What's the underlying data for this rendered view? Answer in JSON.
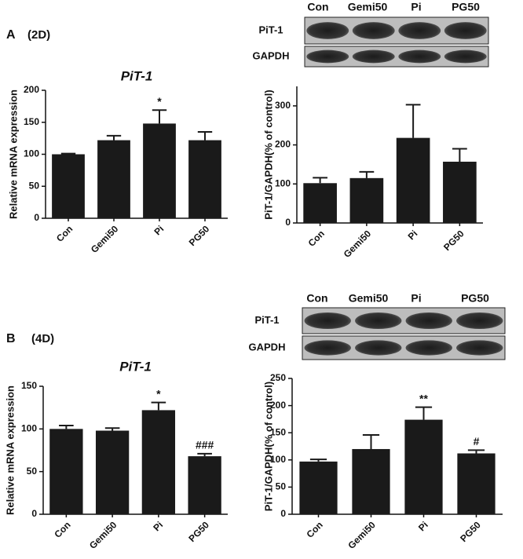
{
  "panels": [
    {
      "label": "A",
      "condition": "(2D)",
      "blot": {
        "lanes": [
          "Con",
          "Gemi50",
          "Pi",
          "PG50"
        ],
        "rows": [
          "PiT-1",
          "GAPDH"
        ]
      }
    },
    {
      "label": "B",
      "condition": "(4D)",
      "blot": {
        "lanes": [
          "Con",
          "Gemi50",
          "Pi",
          "PG50"
        ],
        "rows": [
          "PiT-1",
          "GAPDH"
        ]
      }
    }
  ],
  "chart_data": [
    {
      "type": "bar",
      "title": "PiT-1",
      "ylabel": "Relative mRNA expression",
      "categories": [
        "Con",
        "Gemi50",
        "Pi",
        "PG50"
      ],
      "values": [
        100,
        122,
        148,
        122
      ],
      "errors": [
        1,
        7,
        21,
        13
      ],
      "annotations": [
        null,
        null,
        "*",
        null
      ],
      "color": "#1a1a1a",
      "ylim": [
        0,
        200
      ],
      "yticks": [
        0,
        50,
        100,
        150,
        200
      ]
    },
    {
      "type": "bar",
      "ylabel": "PiT-1/GAPDH(% of control)",
      "categories": [
        "Con",
        "Gemi50",
        "Pi",
        "PG50"
      ],
      "values": [
        102,
        115,
        218,
        157
      ],
      "errors": [
        14,
        16,
        85,
        33
      ],
      "color": "#1a1a1a",
      "ylim": [
        0,
        350
      ],
      "yticks": [
        0,
        100,
        200,
        300
      ]
    },
    {
      "type": "bar",
      "title": "PiT-1",
      "ylabel": "Relative mRNA expression",
      "categories": [
        "Con",
        "Gemi50",
        "Pi",
        "PG50"
      ],
      "values": [
        100,
        98,
        122,
        68
      ],
      "errors": [
        4,
        3,
        9,
        3
      ],
      "annotations": [
        null,
        null,
        "*",
        "###"
      ],
      "color": "#1a1a1a",
      "ylim": [
        0,
        150
      ],
      "yticks": [
        0,
        50,
        100,
        150
      ]
    },
    {
      "type": "bar",
      "ylabel": "PiT-1/GAPDH(% of control)",
      "categories": [
        "Con",
        "Gemi50",
        "Pi",
        "PG50"
      ],
      "values": [
        97,
        120,
        174,
        112
      ],
      "errors": [
        4,
        26,
        23,
        6
      ],
      "annotations": [
        null,
        null,
        "**",
        "#"
      ],
      "color": "#1a1a1a",
      "ylim": [
        0,
        250
      ],
      "yticks": [
        0,
        50,
        100,
        150,
        200,
        250
      ]
    }
  ]
}
